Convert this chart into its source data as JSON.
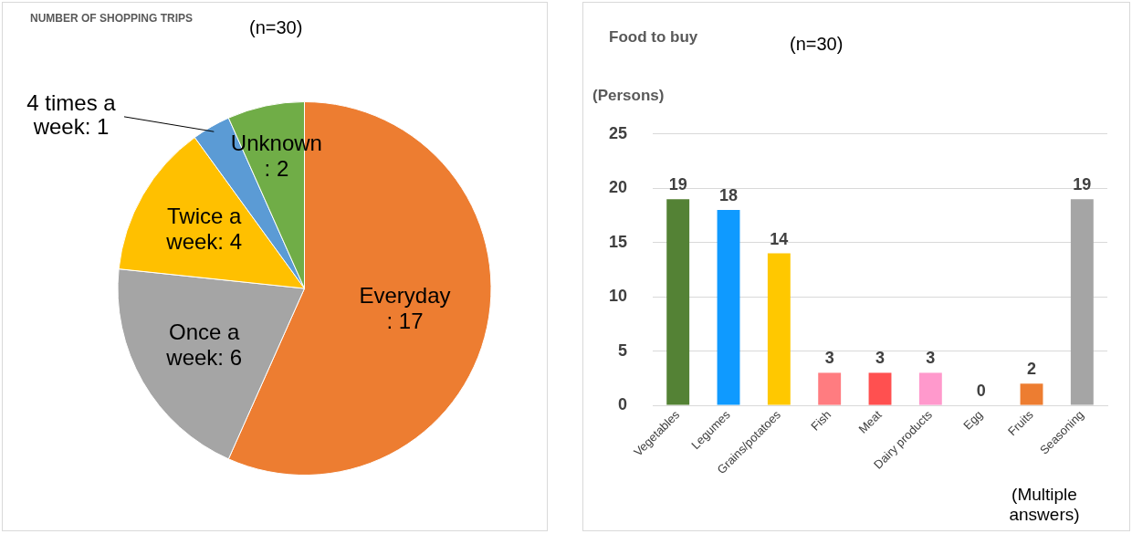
{
  "chart_data": [
    {
      "type": "pie",
      "title": "NUMBER OF SHOPPING TRIPS",
      "subtitle": "(n=30)",
      "categories": [
        "Everyday",
        "Once a week",
        "Twice a week",
        "4 times a week",
        "Unknown"
      ],
      "values": [
        17,
        6,
        4,
        1,
        2
      ],
      "colors": [
        "#ed7d31",
        "#a5a5a5",
        "#ffc000",
        "#5b9bd5",
        "#70ad47"
      ],
      "value_labels": [
        ": 17",
        ": 6",
        ": 4",
        ": 1",
        ": 2"
      ],
      "legend": false
    },
    {
      "type": "bar",
      "title": "Food to buy",
      "subtitle": "(n=30)",
      "ylabel": "(Persons)",
      "categories": [
        "Vegetables",
        "Legumes",
        "Grains/potatoes",
        "Fish",
        "Meat",
        "Dairy products",
        "Egg",
        "Fruits",
        "Seasoning"
      ],
      "values": [
        19,
        18,
        14,
        3,
        3,
        3,
        0,
        2,
        19
      ],
      "colors": [
        "#548235",
        "#0f9aff",
        "#ffc800",
        "#ff7c80",
        "#ff5050",
        "#ff99cc",
        "#ff99cc",
        "#ed7d31",
        "#a5a5a5"
      ],
      "ylim": [
        0,
        25
      ],
      "yticks": [
        0,
        5,
        10,
        15,
        20,
        25
      ],
      "grid": "y",
      "data_labels": true,
      "legend": false,
      "annotations": [
        "(Multiple answers)"
      ]
    }
  ]
}
